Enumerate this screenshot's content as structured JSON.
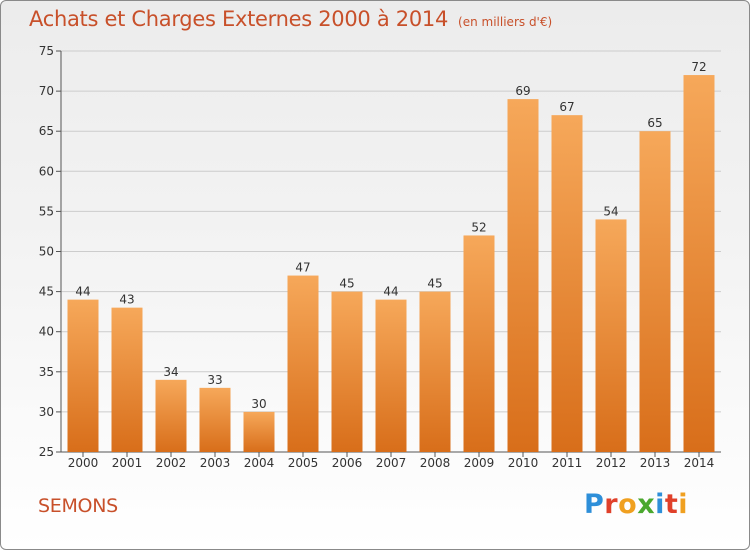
{
  "header": {
    "title": "Achats et Charges Externes 2000 à 2014",
    "subtitle": "(en milliers d'€)"
  },
  "footer": {
    "location": "SEMONS",
    "brand": "Proxiti",
    "brand_letter_colors": [
      "#2e8fd9",
      "#e0402a",
      "#f0a020",
      "#4aa82e",
      "#2e8fd9",
      "#e0402a",
      "#f0a020"
    ]
  },
  "colors": {
    "bar_top": "#f6a85a",
    "bar_bottom": "#d86e1a",
    "grid": "#cccccc",
    "title": "#c8502a"
  },
  "chart_data": {
    "type": "bar",
    "title": "Achats et Charges Externes 2000 à 2014",
    "subtitle": "(en milliers d'€)",
    "xlabel": "",
    "ylabel": "",
    "ylim": [
      25,
      75
    ],
    "yticks": [
      25,
      30,
      35,
      40,
      45,
      50,
      55,
      60,
      65,
      70,
      75
    ],
    "grid": true,
    "categories": [
      "2000",
      "2001",
      "2002",
      "2003",
      "2004",
      "2005",
      "2006",
      "2007",
      "2008",
      "2009",
      "2010",
      "2011",
      "2012",
      "2013",
      "2014"
    ],
    "values": [
      44,
      43,
      34,
      33,
      30,
      47,
      45,
      44,
      45,
      52,
      69,
      67,
      54,
      65,
      72
    ]
  }
}
